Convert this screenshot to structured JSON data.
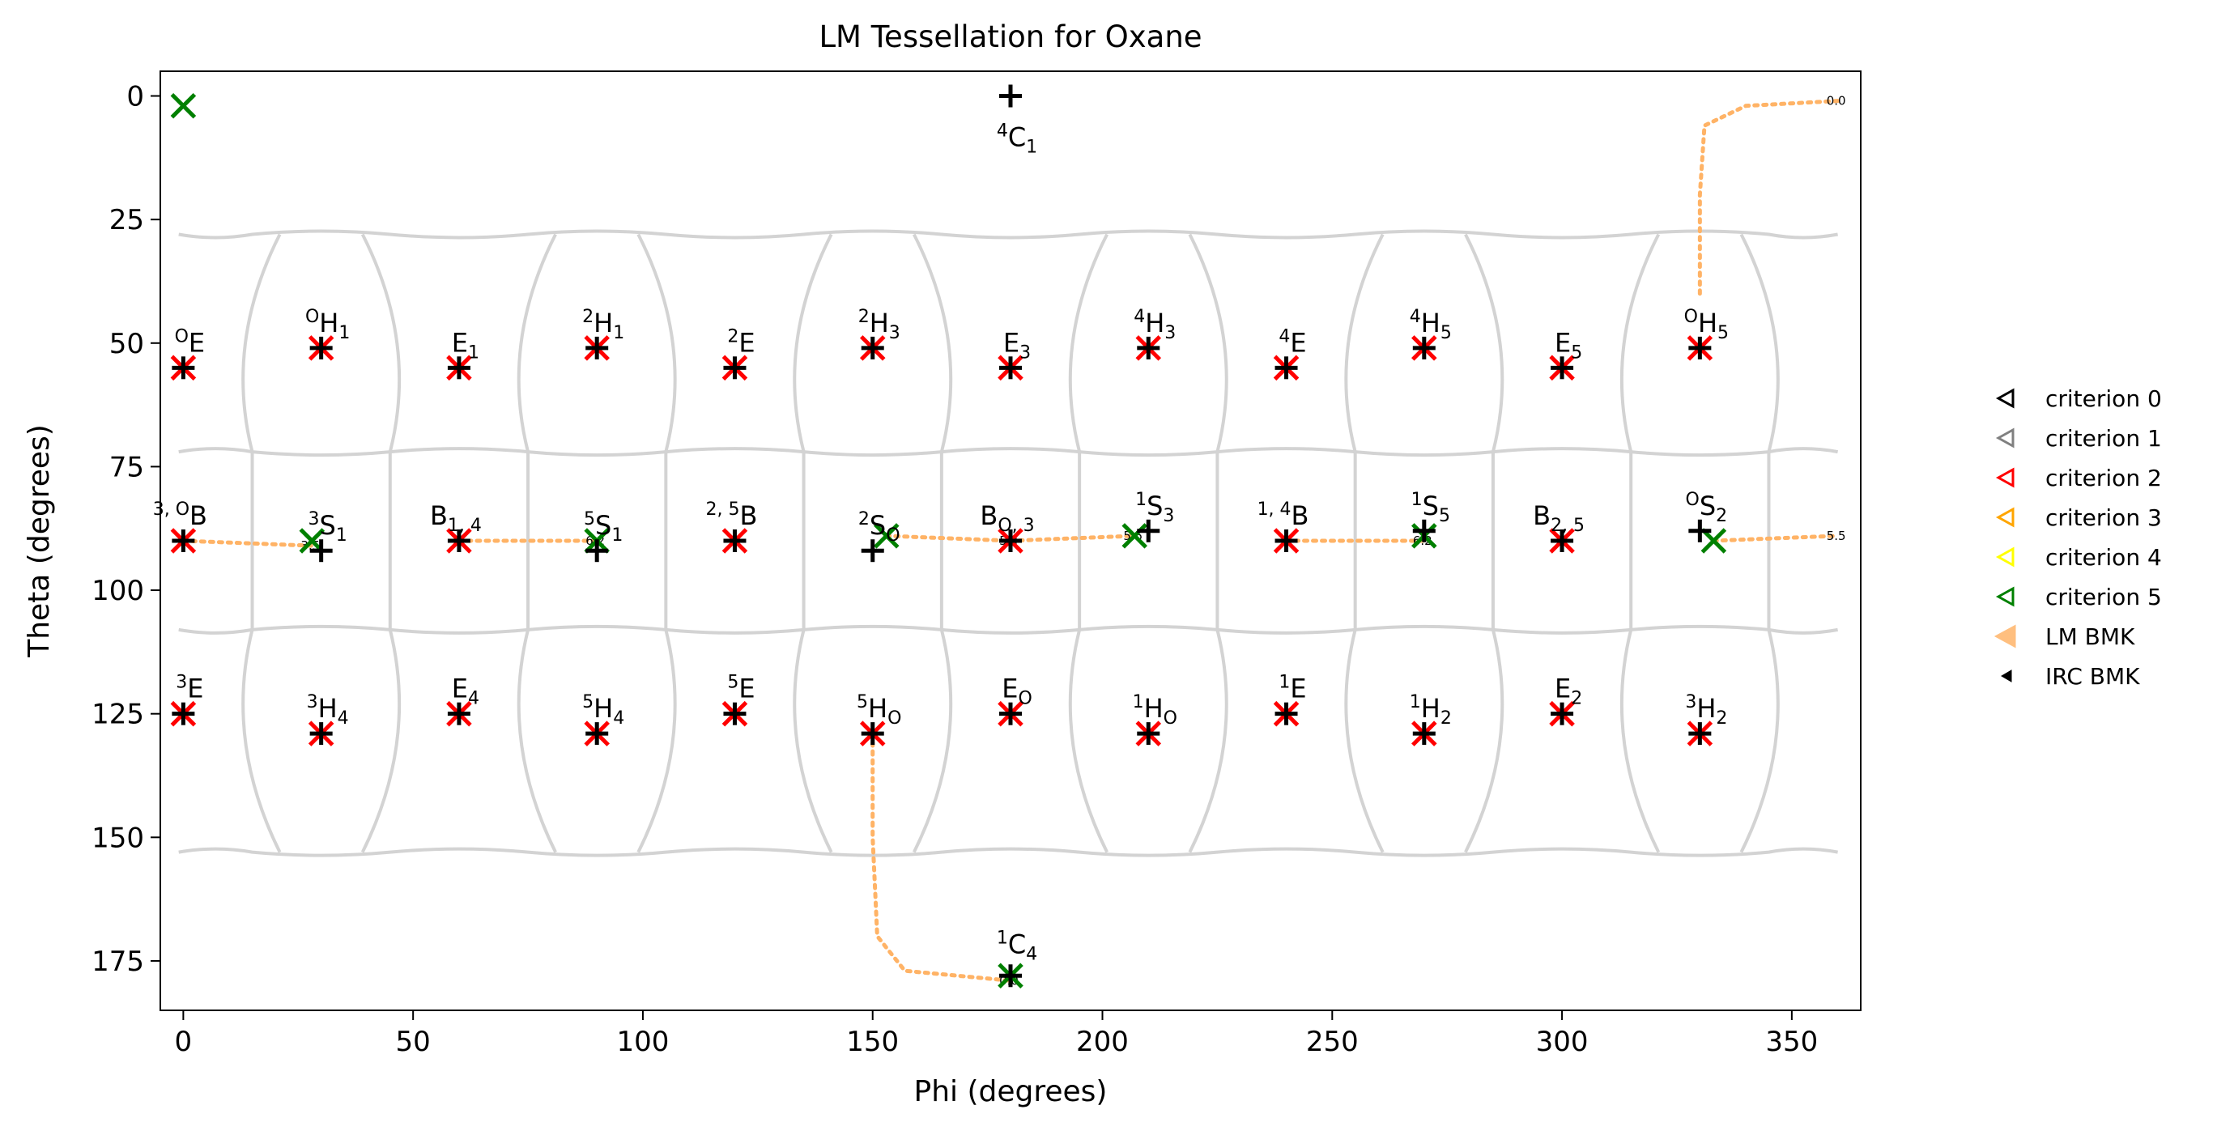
{
  "chart_data": {
    "type": "scatter",
    "title": "LM Tessellation for Oxane",
    "xlabel": "Phi (degrees)",
    "ylabel": "Theta (degrees)",
    "xlim": [
      -5,
      365
    ],
    "ylim": [
      185,
      -5
    ],
    "y_inverted": true,
    "x_ticks": [
      0,
      50,
      100,
      150,
      200,
      250,
      300,
      350
    ],
    "y_ticks": [
      0,
      25,
      50,
      75,
      100,
      125,
      150,
      175
    ],
    "grid": false,
    "legend": {
      "placement": "right",
      "entries": [
        {
          "label": "criterion 0",
          "color": "#000000",
          "marker": "open-triangle-left"
        },
        {
          "label": "criterion 1",
          "color": "#808080",
          "marker": "open-triangle-left"
        },
        {
          "label": "criterion 2",
          "color": "#ff0000",
          "marker": "open-triangle-left"
        },
        {
          "label": "criterion 3",
          "color": "#ffa500",
          "marker": "open-triangle-left"
        },
        {
          "label": "criterion 4",
          "color": "#ffff00",
          "marker": "open-triangle-left"
        },
        {
          "label": "criterion 5",
          "color": "#008000",
          "marker": "open-triangle-left"
        },
        {
          "label": "LM BMK",
          "color": "#ffbf7f",
          "marker": "filled-triangle-left"
        },
        {
          "label": "IRC BMK",
          "color": "#000000",
          "marker": "small-filled-triangle-left"
        }
      ]
    },
    "colors": {
      "criterion_2": "#ff0000",
      "criterion_5": "#008000",
      "reference": "#000000",
      "boundary": "#d3d3d3",
      "lm_path": "#ffb366"
    },
    "reference_points": [
      {
        "label": "4C1",
        "phi": 180,
        "theta": 0
      },
      {
        "label": "OE",
        "phi": 0,
        "theta": 55
      },
      {
        "label": "OH1",
        "phi": 30,
        "theta": 51
      },
      {
        "label": "E1",
        "phi": 60,
        "theta": 55
      },
      {
        "label": "2H1",
        "phi": 90,
        "theta": 51
      },
      {
        "label": "2E",
        "phi": 120,
        "theta": 55
      },
      {
        "label": "2H3",
        "phi": 150,
        "theta": 51
      },
      {
        "label": "E3",
        "phi": 180,
        "theta": 55
      },
      {
        "label": "4H3",
        "phi": 210,
        "theta": 51
      },
      {
        "label": "4E",
        "phi": 240,
        "theta": 55
      },
      {
        "label": "4H5",
        "phi": 270,
        "theta": 51
      },
      {
        "label": "E5",
        "phi": 300,
        "theta": 55
      },
      {
        "label": "OH5",
        "phi": 330,
        "theta": 51
      },
      {
        "label": "3,OB",
        "phi": 0,
        "theta": 90
      },
      {
        "label": "3S1",
        "phi": 30,
        "theta": 92
      },
      {
        "label": "B1,4",
        "phi": 60,
        "theta": 90
      },
      {
        "label": "5S1",
        "phi": 90,
        "theta": 92
      },
      {
        "label": "2,5B",
        "phi": 120,
        "theta": 90
      },
      {
        "label": "2SO",
        "phi": 150,
        "theta": 92
      },
      {
        "label": "BO,3",
        "phi": 180,
        "theta": 90
      },
      {
        "label": "1S3",
        "phi": 210,
        "theta": 88
      },
      {
        "label": "1,4B",
        "phi": 240,
        "theta": 90
      },
      {
        "label": "1S5",
        "phi": 270,
        "theta": 88
      },
      {
        "label": "B2,5",
        "phi": 300,
        "theta": 90
      },
      {
        "label": "OS2",
        "phi": 330,
        "theta": 88
      },
      {
        "label": "3E",
        "phi": 0,
        "theta": 125
      },
      {
        "label": "3H4",
        "phi": 30,
        "theta": 129
      },
      {
        "label": "E4",
        "phi": 60,
        "theta": 125
      },
      {
        "label": "5H4",
        "phi": 90,
        "theta": 129
      },
      {
        "label": "5E",
        "phi": 120,
        "theta": 125
      },
      {
        "label": "5HO",
        "phi": 150,
        "theta": 129
      },
      {
        "label": "EO",
        "phi": 180,
        "theta": 125
      },
      {
        "label": "1HO",
        "phi": 210,
        "theta": 129
      },
      {
        "label": "1E",
        "phi": 240,
        "theta": 125
      },
      {
        "label": "1H2",
        "phi": 270,
        "theta": 129
      },
      {
        "label": "E2",
        "phi": 300,
        "theta": 125
      },
      {
        "label": "3H2",
        "phi": 330,
        "theta": 129
      },
      {
        "label": "1C4",
        "phi": 180,
        "theta": 180
      }
    ],
    "criterion_2_points": [
      [
        0,
        55
      ],
      [
        30,
        51
      ],
      [
        60,
        55
      ],
      [
        90,
        51
      ],
      [
        120,
        55
      ],
      [
        150,
        51
      ],
      [
        180,
        55
      ],
      [
        210,
        51
      ],
      [
        240,
        55
      ],
      [
        270,
        51
      ],
      [
        300,
        55
      ],
      [
        330,
        51
      ],
      [
        0,
        90
      ],
      [
        60,
        90
      ],
      [
        120,
        90
      ],
      [
        180,
        90
      ],
      [
        240,
        90
      ],
      [
        300,
        90
      ],
      [
        0,
        125
      ],
      [
        30,
        129
      ],
      [
        60,
        125
      ],
      [
        90,
        129
      ],
      [
        120,
        125
      ],
      [
        150,
        129
      ],
      [
        180,
        125
      ],
      [
        210,
        129
      ],
      [
        240,
        125
      ],
      [
        270,
        129
      ],
      [
        300,
        125
      ],
      [
        330,
        129
      ]
    ],
    "criterion_5_points": [
      [
        0,
        2
      ],
      [
        28,
        90
      ],
      [
        90,
        90
      ],
      [
        153,
        89
      ],
      [
        207,
        89
      ],
      [
        270,
        89
      ],
      [
        333,
        90
      ],
      [
        180,
        178
      ]
    ],
    "lm_bmk_paths": [
      {
        "points": [
          [
            0,
            90
          ],
          [
            28,
            91
          ]
        ],
        "label": "3.5"
      },
      {
        "points": [
          [
            60,
            90
          ],
          [
            90,
            90
          ]
        ],
        "label": "6.2"
      },
      {
        "points": [
          [
            153,
            89
          ],
          [
            180,
            90
          ]
        ],
        "label": "5.4"
      },
      {
        "points": [
          [
            180,
            90
          ],
          [
            207,
            89
          ]
        ],
        "label": "5.5"
      },
      {
        "points": [
          [
            240,
            90
          ],
          [
            270,
            90
          ]
        ],
        "label": "6.2"
      },
      {
        "points": [
          [
            333,
            90
          ],
          [
            360,
            89
          ]
        ],
        "label": "5.5"
      },
      {
        "points": [
          [
            330,
            40
          ],
          [
            330,
            20
          ],
          [
            331,
            6
          ],
          [
            340,
            2
          ],
          [
            360,
            1
          ]
        ],
        "label": "0.0"
      },
      {
        "points": [
          [
            150,
            129
          ],
          [
            150,
            150
          ],
          [
            151,
            170
          ],
          [
            157,
            177
          ],
          [
            180,
            179
          ]
        ],
        "label": "0.0"
      }
    ],
    "boundary_columns_x": [
      15,
      45,
      75,
      105,
      135,
      165,
      195,
      225,
      255,
      285,
      315,
      345
    ],
    "boundary_rows_y": [
      28,
      72,
      108,
      153
    ]
  }
}
